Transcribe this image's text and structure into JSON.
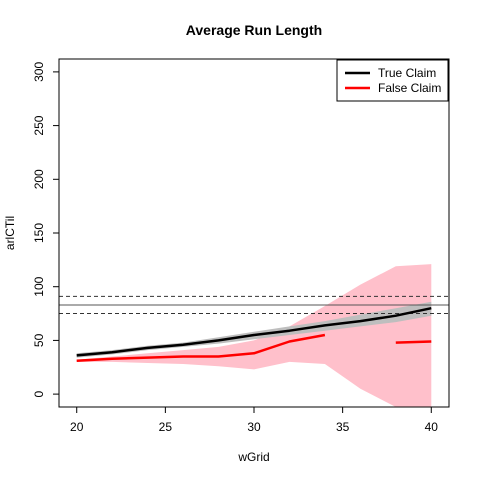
{
  "chart_data": {
    "type": "line",
    "title": "Average Run Length",
    "xlabel": "wGrid",
    "ylabel": "arlCTil",
    "xlim": [
      19,
      41
    ],
    "ylim": [
      -12,
      312
    ],
    "x_ticks": [
      "20",
      "25",
      "30",
      "35",
      "40"
    ],
    "y_ticks": [
      "0",
      "50",
      "100",
      "150",
      "200",
      "250",
      "300"
    ],
    "reference_lines": {
      "solid": 83,
      "dashed": [
        91,
        75
      ]
    },
    "legend": {
      "position": "top-right",
      "items": [
        {
          "label": "True Claim",
          "color": "#000000"
        },
        {
          "label": "False Claim",
          "color": "#ff0000"
        }
      ]
    },
    "series": [
      {
        "name": "True Claim",
        "color": "#000000",
        "band_color": "#bebebe",
        "points": [
          [
            20,
            36
          ],
          [
            22,
            39
          ],
          [
            24,
            43
          ],
          [
            26,
            46
          ],
          [
            28,
            50
          ],
          [
            30,
            55
          ],
          [
            32,
            59
          ],
          [
            34,
            64
          ],
          [
            36,
            68
          ],
          [
            38,
            73
          ],
          [
            40,
            80
          ]
        ],
        "band_lower": [
          [
            20,
            34
          ],
          [
            22,
            37
          ],
          [
            24,
            41
          ],
          [
            26,
            44
          ],
          [
            28,
            47
          ],
          [
            30,
            51
          ],
          [
            32,
            55
          ],
          [
            34,
            59
          ],
          [
            36,
            63
          ],
          [
            38,
            67
          ],
          [
            40,
            73
          ]
        ],
        "band_upper": [
          [
            20,
            38
          ],
          [
            22,
            41
          ],
          [
            24,
            45
          ],
          [
            26,
            48
          ],
          [
            28,
            53
          ],
          [
            30,
            58
          ],
          [
            32,
            63
          ],
          [
            34,
            68
          ],
          [
            36,
            74
          ],
          [
            38,
            80
          ],
          [
            40,
            86
          ]
        ]
      },
      {
        "name": "False Claim",
        "color": "#ff0000",
        "band_color": "#ffc0cb",
        "segments": [
          [
            [
              20,
              31
            ],
            [
              22,
              33
            ],
            [
              24,
              34
            ],
            [
              26,
              35
            ],
            [
              28,
              35
            ],
            [
              30,
              38
            ],
            [
              32,
              49
            ],
            [
              34,
              55
            ]
          ],
          [
            [
              38,
              48
            ],
            [
              40,
              49
            ]
          ]
        ],
        "band_lower": [
          [
            20,
            30
          ],
          [
            22,
            30
          ],
          [
            24,
            29
          ],
          [
            26,
            28
          ],
          [
            28,
            26
          ],
          [
            30,
            23
          ],
          [
            32,
            30
          ],
          [
            34,
            28
          ],
          [
            36,
            5
          ],
          [
            38,
            -12
          ],
          [
            40,
            -12
          ]
        ],
        "band_upper": [
          [
            20,
            32
          ],
          [
            22,
            35
          ],
          [
            24,
            38
          ],
          [
            26,
            41
          ],
          [
            28,
            44
          ],
          [
            30,
            50
          ],
          [
            32,
            63
          ],
          [
            34,
            82
          ],
          [
            36,
            102
          ],
          [
            38,
            119
          ],
          [
            40,
            121
          ]
        ]
      }
    ]
  }
}
